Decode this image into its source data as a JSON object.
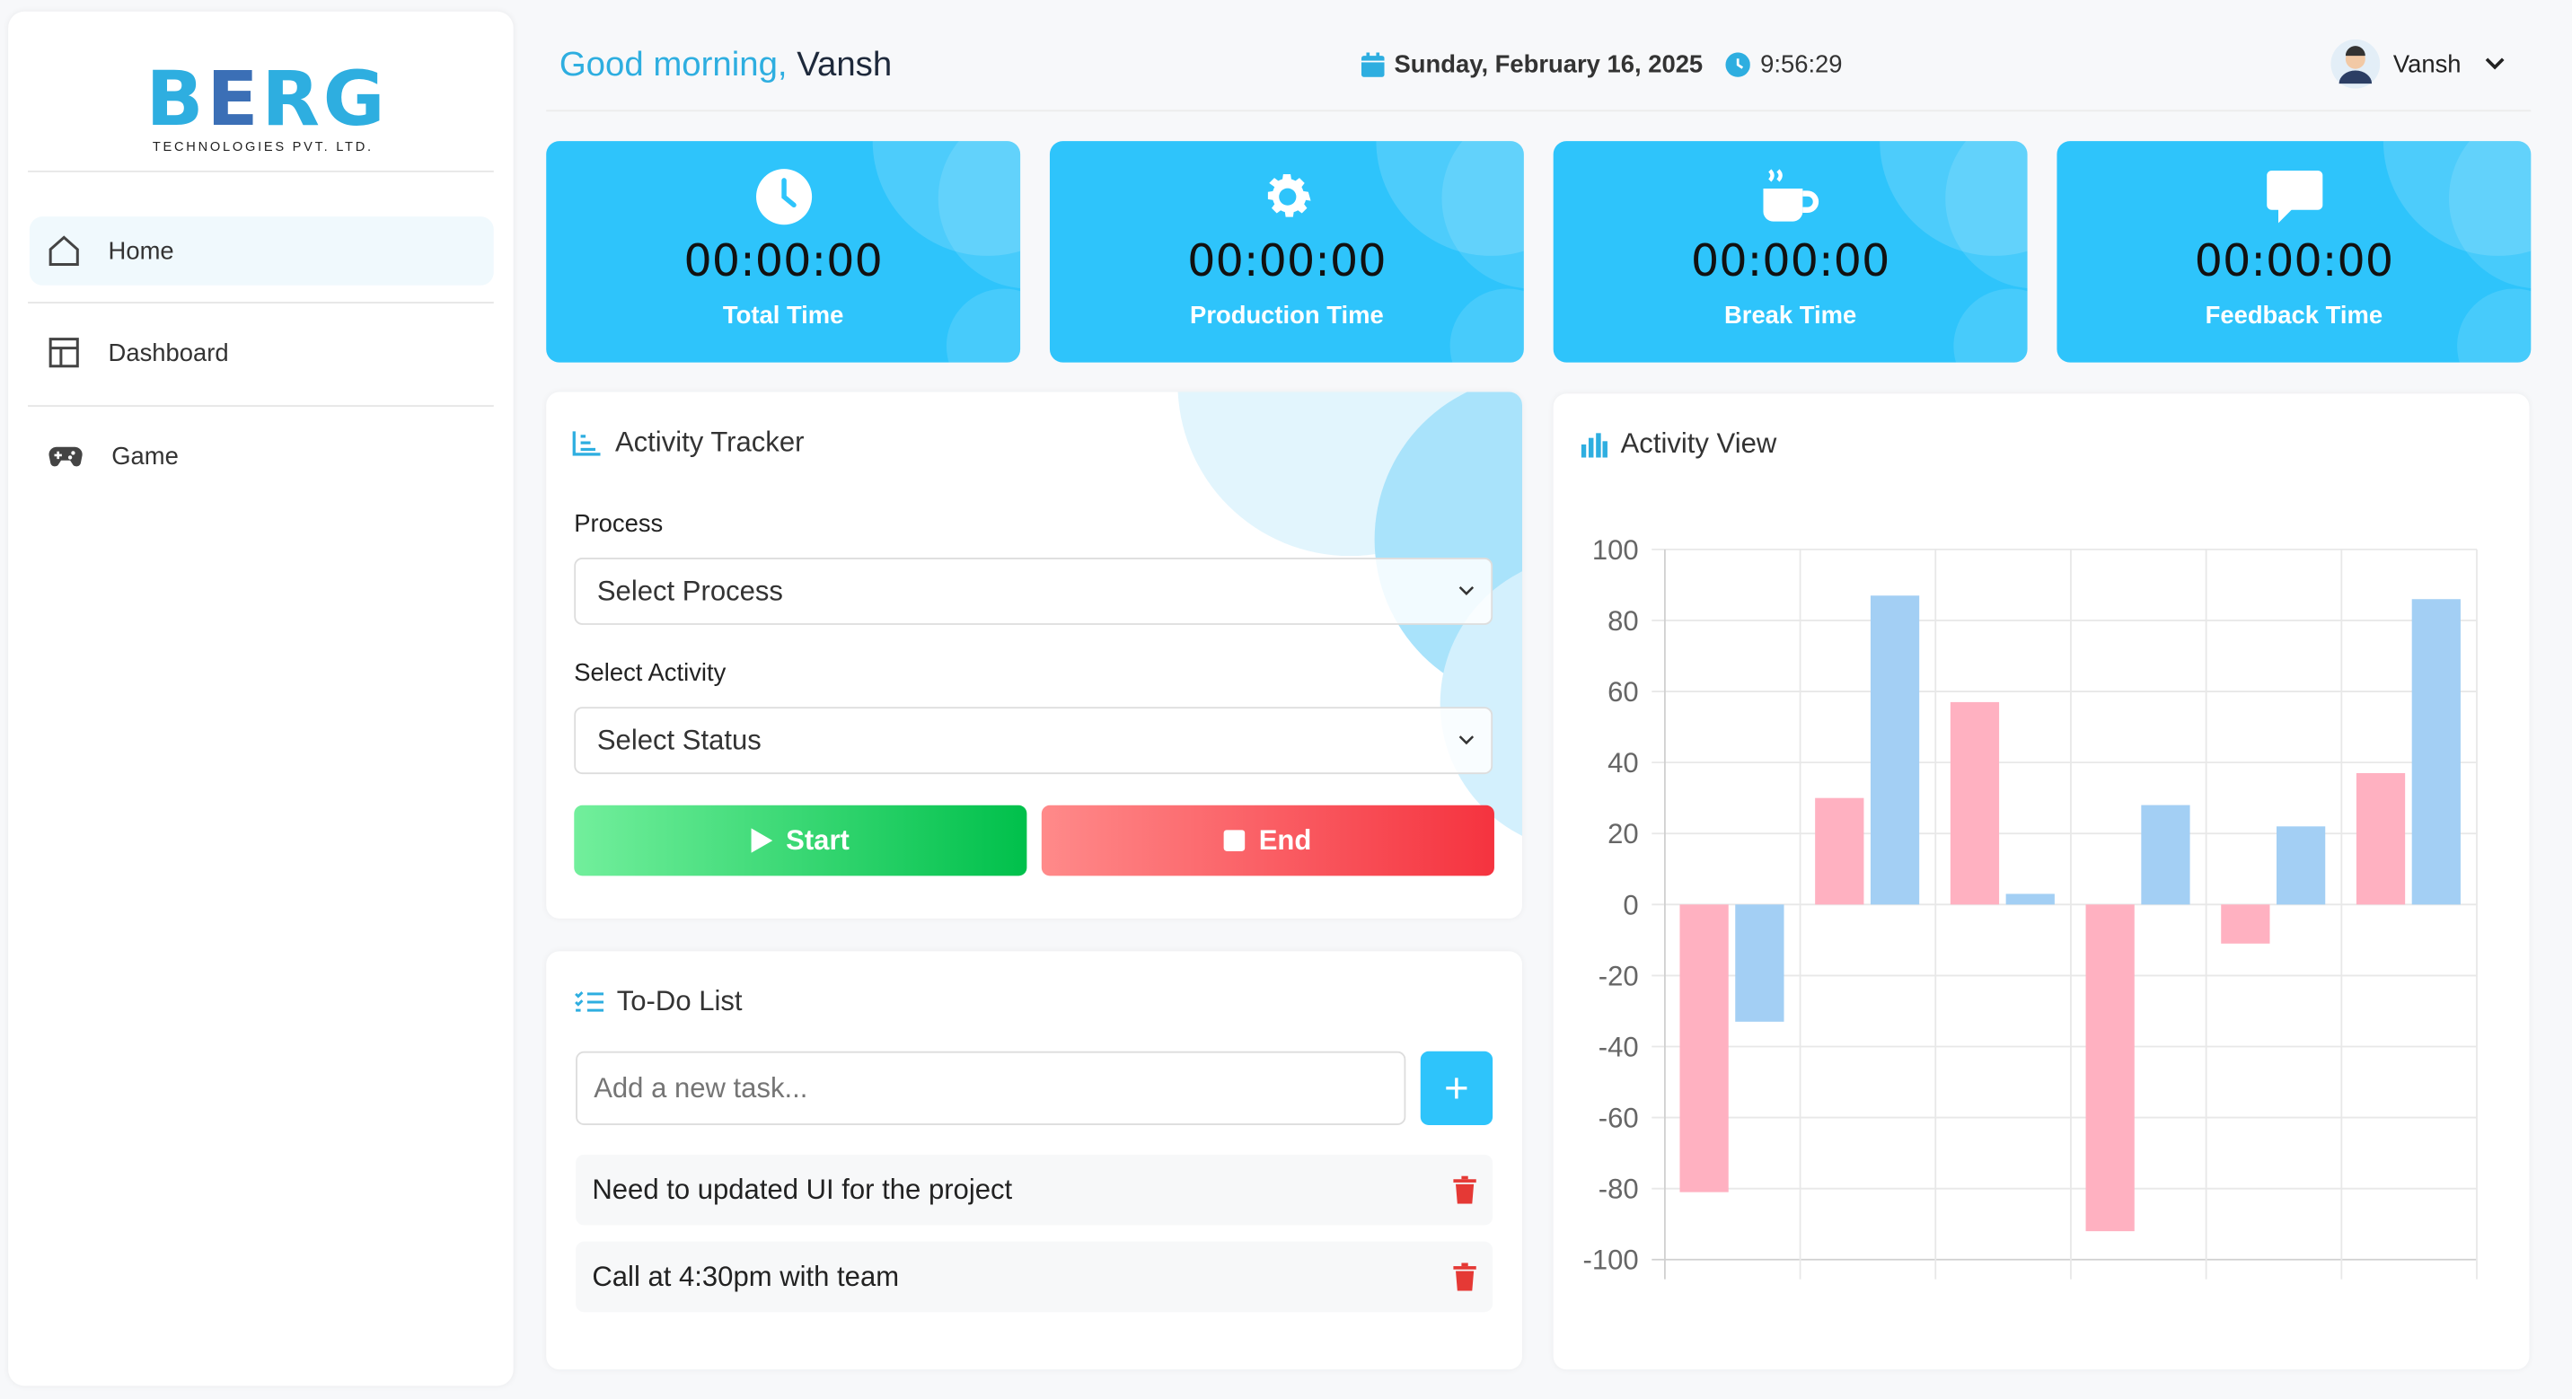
{
  "brand": {
    "name": "BERG",
    "tagline": "TECHNOLOGIES PVT. LTD.",
    "colors": {
      "primary": "#2eaee0",
      "secondary": "#3b6fb6"
    }
  },
  "sidebar": {
    "items": [
      {
        "label": "Home",
        "icon": "home-icon",
        "active": true
      },
      {
        "label": "Dashboard",
        "icon": "layout-icon"
      },
      {
        "label": "Game",
        "icon": "gamepad-icon"
      }
    ]
  },
  "header": {
    "greeting": "Good morning,",
    "user_name": "Vansh",
    "date": "Sunday, February 16, 2025",
    "time": "9:56:29",
    "profile_name": "Vansh"
  },
  "stats": [
    {
      "value": "00:00:00",
      "label": "Total Time",
      "icon": "clock-icon"
    },
    {
      "value": "00:00:00",
      "label": "Production Time",
      "icon": "gear-icon"
    },
    {
      "value": "00:00:00",
      "label": "Break Time",
      "icon": "coffee-icon"
    },
    {
      "value": "00:00:00",
      "label": "Feedback Time",
      "icon": "comment-icon"
    }
  ],
  "tracker": {
    "title": "Activity Tracker",
    "process_label": "Process",
    "process_value": "Select Process",
    "activity_label": "Select Activity",
    "activity_value": "Select Status",
    "start_label": "Start",
    "end_label": "End"
  },
  "todo": {
    "title": "To-Do List",
    "placeholder": "Add a new task...",
    "add_label": "+",
    "items": [
      "Need to updated UI for the project",
      "Call at 4:30pm with team"
    ]
  },
  "activity_view": {
    "title": "Activity View"
  },
  "chart_data": {
    "type": "bar",
    "categories": [
      "",
      "",
      "",
      "",
      "",
      ""
    ],
    "series": [
      {
        "values": [
          -81,
          30,
          57,
          -92,
          -11,
          37
        ],
        "color": "#ffb1c1"
      },
      {
        "values": [
          -33,
          87,
          3,
          28,
          22,
          86
        ],
        "color": "#a3cff4"
      }
    ],
    "ylim": [
      -100,
      100
    ],
    "yticks": [
      100,
      80,
      60,
      40,
      20,
      0,
      -20,
      -40,
      -60,
      -80,
      -100
    ],
    "grid": true
  }
}
